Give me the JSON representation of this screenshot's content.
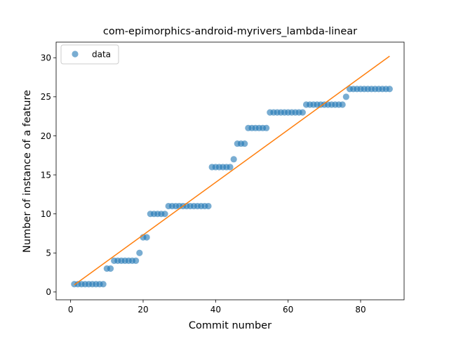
{
  "chart_data": {
    "type": "scatter",
    "title": "com-epimorphics-android-myrivers_lambda-linear",
    "xlabel": "Commit number",
    "ylabel": "Number of instance of a feature",
    "xlim": [
      -4,
      92
    ],
    "ylim": [
      -1,
      32
    ],
    "xticks": [
      0,
      20,
      40,
      60,
      80
    ],
    "yticks": [
      0,
      5,
      10,
      15,
      20,
      25,
      30
    ],
    "legend": {
      "position": "top-left",
      "entries": [
        "data"
      ]
    },
    "colors": {
      "data": "#1f77b4",
      "fit": "#ff7f0e"
    },
    "series": [
      {
        "name": "data",
        "kind": "scatter",
        "x": [
          1,
          2,
          3,
          4,
          5,
          6,
          7,
          8,
          9,
          10,
          11,
          12,
          13,
          14,
          15,
          16,
          17,
          18,
          19,
          20,
          21,
          22,
          23,
          24,
          25,
          26,
          27,
          28,
          29,
          30,
          31,
          32,
          33,
          34,
          35,
          36,
          37,
          38,
          39,
          40,
          41,
          42,
          43,
          44,
          45,
          46,
          47,
          48,
          49,
          50,
          51,
          52,
          53,
          54,
          55,
          56,
          57,
          58,
          59,
          60,
          61,
          62,
          63,
          64,
          65,
          66,
          67,
          68,
          69,
          70,
          71,
          72,
          73,
          74,
          75,
          76,
          77,
          78,
          79,
          80,
          81,
          82,
          83,
          84,
          85,
          86,
          87,
          88
        ],
        "y": [
          1,
          1,
          1,
          1,
          1,
          1,
          1,
          1,
          1,
          3,
          3,
          4,
          4,
          4,
          4,
          4,
          4,
          4,
          5,
          7,
          7,
          10,
          10,
          10,
          10,
          10,
          11,
          11,
          11,
          11,
          11,
          11,
          11,
          11,
          11,
          11,
          11,
          11,
          16,
          16,
          16,
          16,
          16,
          16,
          17,
          19,
          19,
          19,
          21,
          21,
          21,
          21,
          21,
          21,
          23,
          23,
          23,
          23,
          23,
          23,
          23,
          23,
          23,
          23,
          24,
          24,
          24,
          24,
          24,
          24,
          24,
          24,
          24,
          24,
          24,
          25,
          26,
          26,
          26,
          26,
          26,
          26,
          26,
          26,
          26,
          26,
          26,
          26
        ]
      },
      {
        "name": "linear fit",
        "kind": "line",
        "x": [
          1,
          88
        ],
        "y": [
          0.9,
          30.2
        ]
      }
    ]
  }
}
